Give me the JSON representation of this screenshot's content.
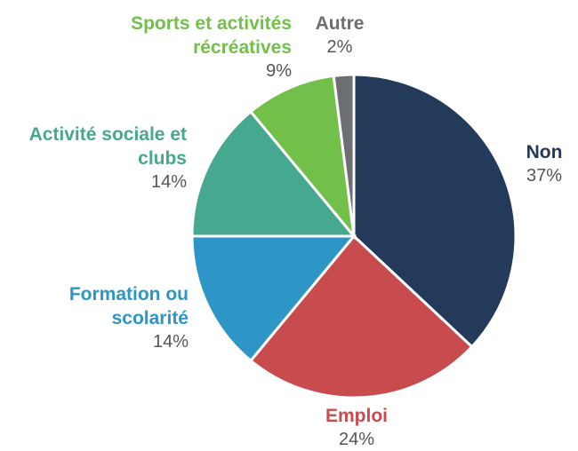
{
  "chart_data": {
    "type": "pie",
    "categories": [
      "Non",
      "Emploi",
      "Formation ou scolarité",
      "Activité sociale et clubs",
      "Sports et activités récréatives",
      "Autre"
    ],
    "values": [
      37,
      24,
      14,
      14,
      9,
      2
    ],
    "value_labels": [
      "37%",
      "24%",
      "14%",
      "14%",
      "9%",
      "2%"
    ],
    "colors": [
      "#243a5a",
      "#c84b4e",
      "#2e96c6",
      "#45a88f",
      "#72bf4a",
      "#6d6e71"
    ]
  }
}
